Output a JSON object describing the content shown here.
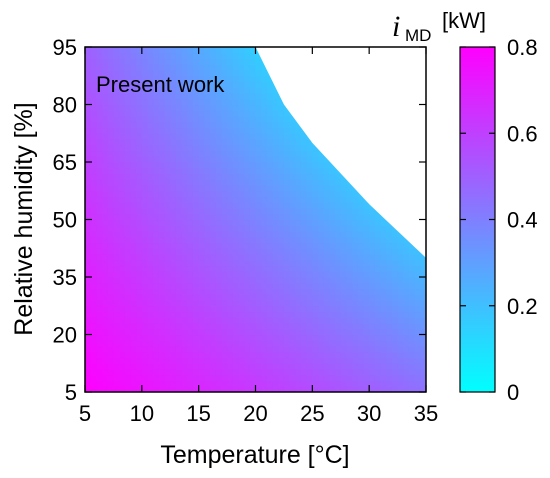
{
  "chart_data": {
    "type": "heatmap",
    "xlabel": "Temperature [°C]",
    "ylabel": "Relative humidity [%]",
    "xlim": [
      5,
      35
    ],
    "ylim": [
      5,
      95
    ],
    "x_ticks": [
      "5",
      "10",
      "15",
      "20",
      "25",
      "30",
      "35"
    ],
    "y_ticks": [
      "5",
      "20",
      "35",
      "50",
      "65",
      "80",
      "95"
    ],
    "annotation": "Present work",
    "colorbar": {
      "symbol": "i",
      "subscript": "MD",
      "unit": "[kW]",
      "range": [
        0,
        0.8
      ],
      "ticks": [
        "0",
        "0.2",
        "0.4",
        "0.6",
        "0.8"
      ],
      "colors": [
        "#00ffff",
        "#ff00ff"
      ]
    },
    "valid_region_boundary": {
      "x": [
        17,
        20,
        22.5,
        25,
        27.5,
        30,
        32.5,
        35
      ],
      "y": [
        95,
        95,
        80,
        70,
        62,
        54,
        47,
        40
      ]
    },
    "values_at_corners": [
      {
        "x": 5,
        "y": 5,
        "value": 0.8
      },
      {
        "x": 5,
        "y": 95,
        "value": 0.5
      },
      {
        "x": 35,
        "y": 5,
        "value": 0.45
      },
      {
        "x": 35,
        "y": 40,
        "value": 0.2
      }
    ],
    "grid": false
  }
}
